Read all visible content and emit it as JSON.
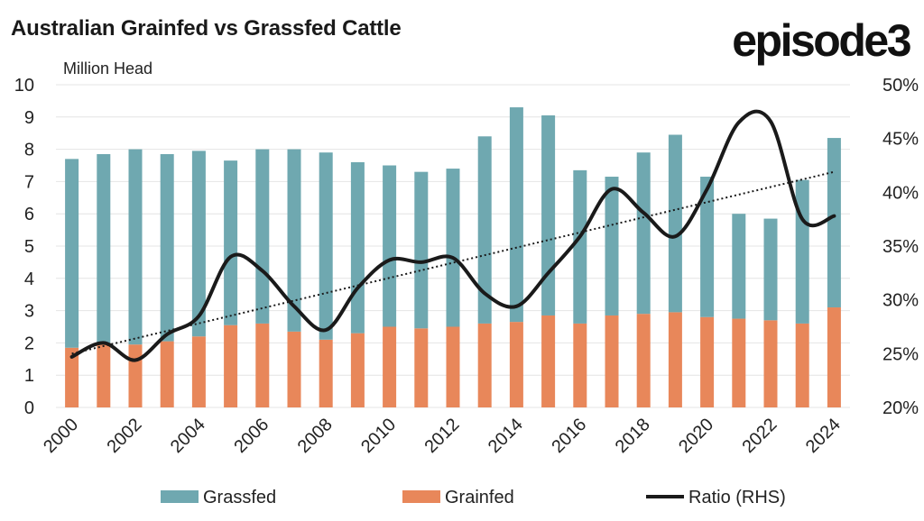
{
  "brand": {
    "logo_text": "episode3"
  },
  "colors": {
    "grassfed": "#6fa8b0",
    "grainfed": "#e8875a",
    "ratio": "#1a1a1a",
    "trend": "#1a1a1a",
    "grid": "#e4e4e4"
  },
  "chart_data": {
    "type": "bar",
    "title": "Australian Grainfed vs Grassfed Cattle",
    "ylabel": "Million Head",
    "y2label": "",
    "stacked": true,
    "categories": [
      "2000",
      "2001",
      "2002",
      "2003",
      "2004",
      "2005",
      "2006",
      "2007",
      "2008",
      "2009",
      "2010",
      "2011",
      "2012",
      "2013",
      "2014",
      "2015",
      "2016",
      "2017",
      "2018",
      "2019",
      "2020",
      "2021",
      "2022",
      "2023",
      "2024"
    ],
    "x_tick_labels": [
      "2000",
      "2002",
      "2004",
      "2006",
      "2008",
      "2010",
      "2012",
      "2014",
      "2016",
      "2018",
      "2020",
      "2022",
      "2024"
    ],
    "ylim": [
      0,
      10
    ],
    "yticks": [
      "0",
      "1",
      "2",
      "3",
      "4",
      "5",
      "6",
      "7",
      "8",
      "9",
      "10"
    ],
    "y2lim": [
      20,
      50
    ],
    "y2ticks": [
      "20%",
      "25%",
      "30%",
      "35%",
      "40%",
      "45%",
      "50%"
    ],
    "series": [
      {
        "name": "Grassfed",
        "kind": "bar",
        "values": [
          5.85,
          5.85,
          6.05,
          5.8,
          5.75,
          5.1,
          5.4,
          5.65,
          5.8,
          5.3,
          5.0,
          4.85,
          4.9,
          5.8,
          6.65,
          6.2,
          4.75,
          4.3,
          5.0,
          5.5,
          4.35,
          3.25,
          3.15,
          4.45,
          5.25
        ]
      },
      {
        "name": "Grainfed",
        "kind": "bar",
        "values": [
          1.85,
          2.0,
          1.95,
          2.05,
          2.2,
          2.55,
          2.6,
          2.35,
          2.1,
          2.3,
          2.5,
          2.45,
          2.5,
          2.6,
          2.65,
          2.85,
          2.6,
          2.85,
          2.9,
          2.95,
          2.8,
          2.75,
          2.7,
          2.6,
          3.1
        ]
      },
      {
        "name": "Ratio (RHS)",
        "kind": "line",
        "axis": "right",
        "values": [
          24.7,
          26.0,
          24.4,
          26.8,
          28.5,
          34.0,
          32.7,
          29.4,
          27.2,
          31.1,
          33.7,
          33.5,
          33.9,
          30.6,
          29.4,
          32.5,
          35.9,
          40.3,
          38.1,
          35.9,
          40.3,
          46.5,
          46.6,
          37.5,
          37.8
        ]
      }
    ],
    "trendline": {
      "style": "dotted",
      "axis": "right",
      "start": 25.0,
      "end": 41.9
    },
    "legend": {
      "placement": "bottom",
      "items": [
        "Grassfed",
        "Grainfed",
        "Ratio (RHS)"
      ]
    },
    "grid": true
  }
}
